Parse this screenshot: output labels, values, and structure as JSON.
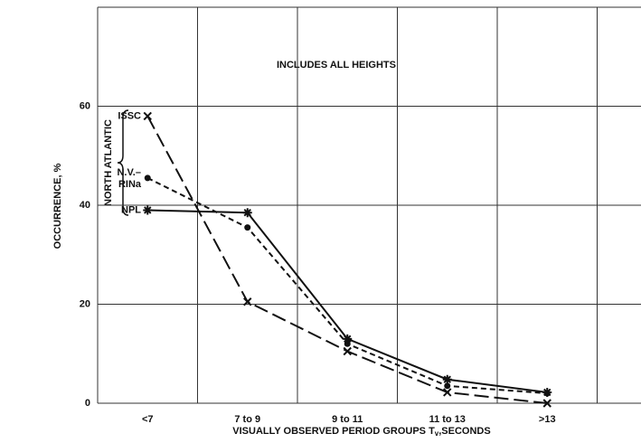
{
  "chart_data": {
    "type": "line",
    "annotation": "INCLUDES ALL HEIGHTS",
    "group_label": "NORTH ATLANTIC",
    "ylabel": "OCCURRENCE, %",
    "xlabel": {
      "text": "VISUALLY OBSERVED PERIOD GROUPS T",
      "subscript": "v",
      "suffix": ",SECONDS"
    },
    "categories": [
      "<7",
      "7 to 9",
      "9 to 11",
      "11 to 13",
      ">13"
    ],
    "series": [
      {
        "name": "ISSC",
        "color": "#111111",
        "dash": "16 6",
        "marker": "cross",
        "values": [
          58,
          20.5,
          10.5,
          2.2,
          0
        ]
      },
      {
        "name": "N.V.–RINa",
        "color": "#111111",
        "dash": "6 4",
        "marker": "dot",
        "values": [
          45.5,
          35.5,
          12,
          3.5,
          2
        ]
      },
      {
        "name": "NPL",
        "color": "#111111",
        "dash": "none",
        "marker": "star",
        "values": [
          39,
          38.5,
          13,
          4.8,
          2.2
        ]
      }
    ],
    "ylim": [
      0,
      80
    ],
    "yticks": [
      0,
      20,
      40,
      60
    ],
    "grid": true
  }
}
